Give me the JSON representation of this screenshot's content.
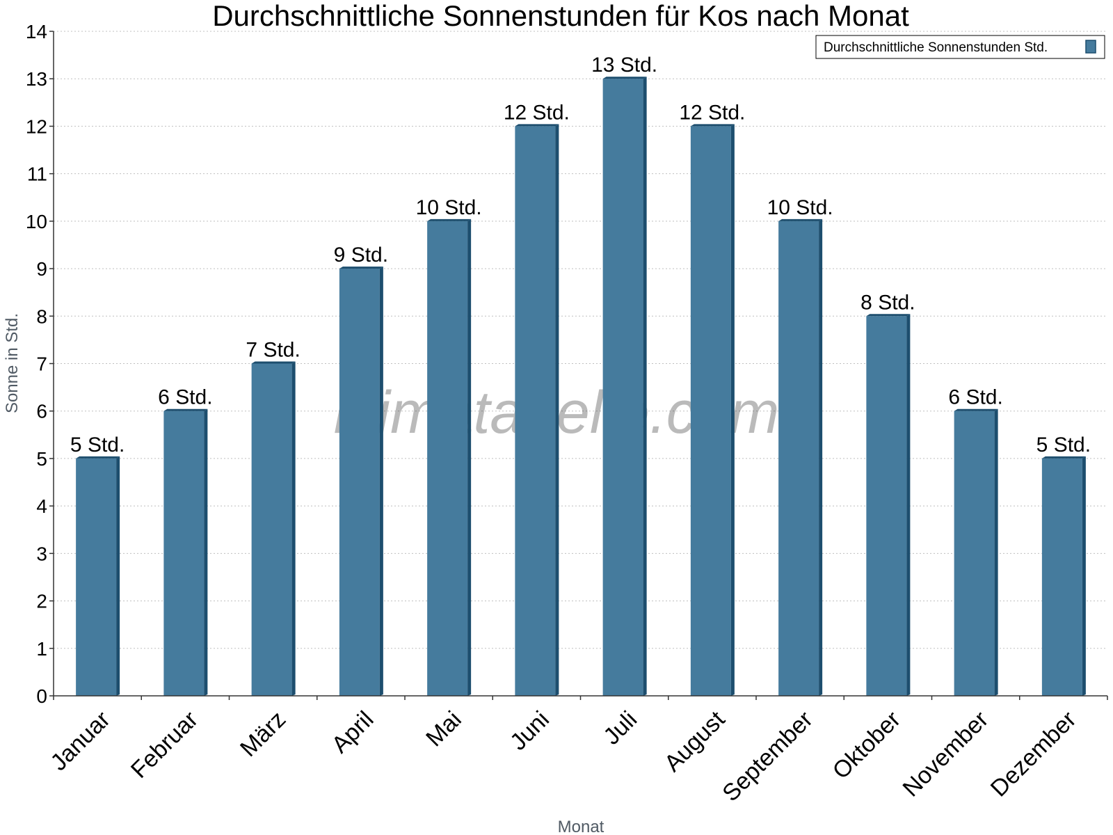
{
  "chart_data": {
    "type": "bar",
    "title": "Durchschnittliche Sonnenstunden für Kos nach Monat",
    "xlabel": "Monat",
    "ylabel": "Sonne in Std.",
    "ylim": [
      0,
      14
    ],
    "yticks": [
      0,
      1,
      2,
      3,
      4,
      5,
      6,
      7,
      8,
      9,
      10,
      11,
      12,
      13,
      14
    ],
    "grid": true,
    "legend_position": "top-right",
    "categories": [
      "Januar",
      "Februar",
      "März",
      "April",
      "Mai",
      "Juni",
      "Juli",
      "August",
      "September",
      "Oktober",
      "November",
      "Dezember"
    ],
    "series": [
      {
        "name": "Durchschnittliche Sonnenstunden Std.",
        "values": [
          5,
          6,
          7,
          9,
          10,
          12,
          13,
          12,
          10,
          8,
          6,
          5
        ],
        "data_labels": [
          "5 Std.",
          "6 Std.",
          "7 Std.",
          "9 Std.",
          "10 Std.",
          "12 Std.",
          "13 Std.",
          "12 Std.",
          "10 Std.",
          "8 Std.",
          "6 Std.",
          "5 Std."
        ],
        "color": "#457b9d",
        "color_side": "#1d4e6e"
      }
    ],
    "watermark": "klimatabelle.com"
  }
}
